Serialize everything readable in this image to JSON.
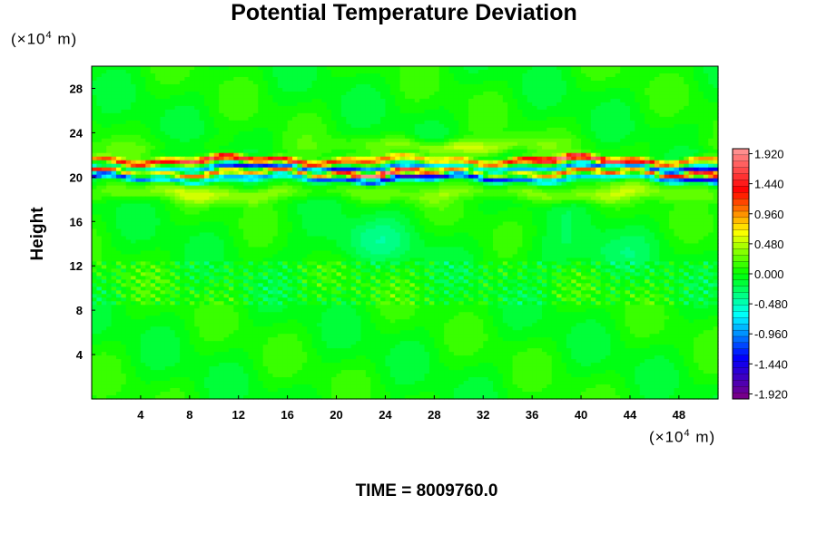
{
  "chart_data": {
    "type": "heatmap",
    "title": "Potential Temperature Deviation",
    "ylabel": "Height",
    "xlabel": "",
    "x_unit": "(×10⁴ m)",
    "y_unit": "(×10⁴ m)",
    "footer": "TIME = 8009760.0",
    "xlim": [
      0,
      51.2
    ],
    "ylim": [
      0,
      30
    ],
    "x_ticks": [
      4,
      8,
      12,
      16,
      20,
      24,
      28,
      32,
      36,
      40,
      44,
      48
    ],
    "y_ticks": [
      4,
      8,
      12,
      16,
      20,
      24,
      28
    ],
    "colorbar": {
      "range": [
        -2.0,
        2.0
      ],
      "ticks": [
        "1.920",
        "1.440",
        "0.960",
        "0.480",
        "0.000",
        "-0.480",
        "-0.960",
        "-1.440",
        "-1.920"
      ],
      "tick_values": [
        1.92,
        1.44,
        0.96,
        0.48,
        0.0,
        -0.48,
        -0.96,
        -1.44,
        -1.92
      ],
      "levels": 40,
      "stops": [
        "#800080",
        "#0000ff",
        "#00ffff",
        "#00ff00",
        "#ffff00",
        "#ff0000",
        "#ff9a9a"
      ]
    },
    "field": {
      "background_value": 0.0,
      "bands": [
        {
          "height": 21.5,
          "amplitude": 1.8
        },
        {
          "height": 20.8,
          "amplitude": -1.6
        },
        {
          "height": 20.4,
          "amplitude": 2.0
        },
        {
          "height": 19.9,
          "amplitude": -1.7
        },
        {
          "height": 22.8,
          "amplitude": 0.5
        },
        {
          "height": 18.5,
          "amplitude": 0.4
        }
      ]
    }
  }
}
